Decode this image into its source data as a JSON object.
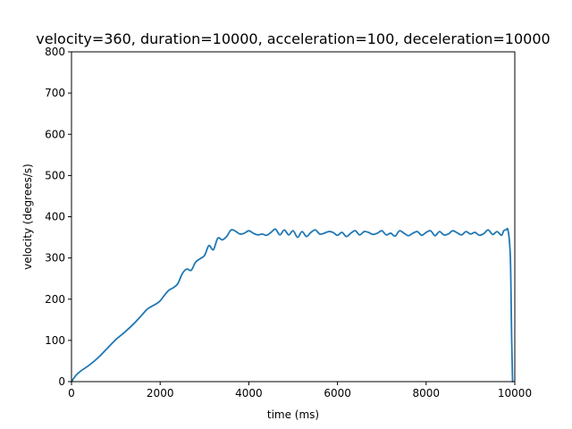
{
  "chart_data": {
    "type": "line",
    "title": "velocity=360, duration=10000, acceleration=100, deceleration=10000",
    "xlabel": "time (ms)",
    "ylabel": "velocity (degrees/s)",
    "xlim": [
      0,
      10000
    ],
    "ylim": [
      0,
      800
    ],
    "xticks": [
      0,
      2000,
      4000,
      6000,
      8000,
      10000
    ],
    "yticks": [
      0,
      100,
      200,
      300,
      400,
      500,
      600,
      700,
      800
    ],
    "xtick_labels": [
      "0",
      "2000",
      "4000",
      "6000",
      "8000",
      "10000"
    ],
    "ytick_labels": [
      "0",
      "100",
      "200",
      "300",
      "400",
      "500",
      "600",
      "700",
      "800"
    ],
    "grid": false,
    "legend": "none",
    "series": [
      {
        "color": "#1f77b4",
        "x": [
          0,
          100,
          200,
          400,
          600,
          800,
          1000,
          1200,
          1400,
          1600,
          1700,
          1800,
          1900,
          2000,
          2100,
          2200,
          2300,
          2400,
          2500,
          2600,
          2700,
          2800,
          2900,
          3000,
          3100,
          3200,
          3300,
          3400,
          3500,
          3600,
          3700,
          3800,
          3900,
          4000,
          4100,
          4200,
          4300,
          4400,
          4500,
          4600,
          4700,
          4800,
          4900,
          5000,
          5100,
          5200,
          5300,
          5400,
          5500,
          5600,
          5700,
          5800,
          5900,
          6000,
          6100,
          6200,
          6300,
          6400,
          6500,
          6600,
          6700,
          6800,
          6900,
          7000,
          7100,
          7200,
          7300,
          7400,
          7500,
          7600,
          7700,
          7800,
          7900,
          8000,
          8100,
          8200,
          8300,
          8400,
          8500,
          8600,
          8700,
          8800,
          8900,
          9000,
          9100,
          9200,
          9300,
          9400,
          9500,
          9600,
          9700,
          9750,
          9800,
          9850,
          9900,
          9930,
          9950
        ],
        "y": [
          0,
          15,
          25,
          40,
          58,
          80,
          102,
          120,
          140,
          163,
          175,
          182,
          188,
          196,
          210,
          222,
          228,
          238,
          262,
          273,
          270,
          290,
          298,
          306,
          330,
          320,
          348,
          344,
          352,
          368,
          365,
          358,
          360,
          366,
          360,
          356,
          358,
          355,
          362,
          370,
          356,
          368,
          356,
          366,
          350,
          364,
          352,
          362,
          368,
          358,
          360,
          364,
          362,
          355,
          362,
          352,
          360,
          366,
          356,
          364,
          362,
          357,
          360,
          366,
          356,
          360,
          353,
          366,
          360,
          354,
          360,
          364,
          355,
          362,
          366,
          354,
          364,
          356,
          358,
          366,
          361,
          356,
          364,
          358,
          362,
          355,
          359,
          368,
          357,
          364,
          355,
          366,
          368,
          366,
          300,
          100,
          0
        ]
      }
    ]
  }
}
